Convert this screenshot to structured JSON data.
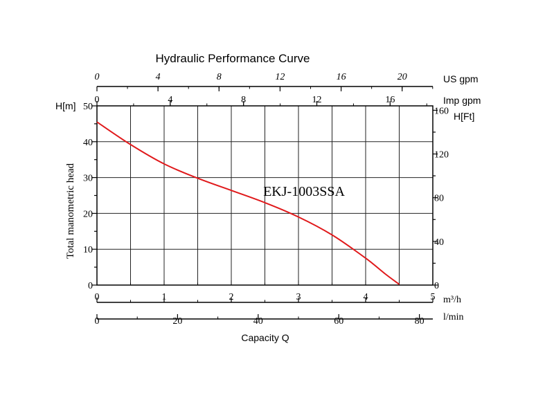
{
  "chart_data": {
    "type": "line",
    "title": "Hydraulic Performance Curve",
    "model_label": "EKJ-1003SSA",
    "ylabel": "Total manometric head",
    "xlabel": "Capacity Q",
    "series": [
      {
        "name": "EKJ-1003SSA",
        "color": "#e0191b",
        "x": [
          0,
          0.5,
          1.0,
          1.5,
          2.0,
          2.5,
          3.0,
          3.5,
          4.0,
          4.3,
          4.5
        ],
        "y": [
          45.5,
          39.2,
          33.8,
          29.8,
          26.4,
          23.0,
          19.0,
          14.0,
          7.5,
          3.0,
          0.2
        ]
      }
    ],
    "axes": {
      "m3h": {
        "unit": "m³/h",
        "range": [
          0,
          5
        ],
        "ticks": [
          "0",
          "1",
          "2",
          "3",
          "4",
          "5"
        ]
      },
      "lmin": {
        "unit": "l/min",
        "range": [
          0,
          83.33
        ],
        "ticks": [
          "0",
          "20",
          "40",
          "60",
          "80"
        ]
      },
      "usgpm": {
        "unit": "US gpm",
        "range": [
          0,
          22.01
        ],
        "ticks": [
          "0",
          "4",
          "8",
          "12",
          "16",
          "20"
        ]
      },
      "impgpm": {
        "unit": "Imp gpm",
        "range": [
          0,
          18.33
        ],
        "ticks": [
          "0",
          "4",
          "8",
          "12",
          "16"
        ]
      },
      "hm": {
        "unit": "H[m]",
        "range": [
          0,
          50
        ],
        "ticks": [
          "0",
          "10",
          "20",
          "30",
          "40",
          "50"
        ]
      },
      "hft": {
        "unit": "H[Ft]",
        "range": [
          0,
          164.04
        ],
        "ticks": [
          "0",
          "40",
          "80",
          "120",
          "160"
        ]
      }
    },
    "grid": true
  }
}
